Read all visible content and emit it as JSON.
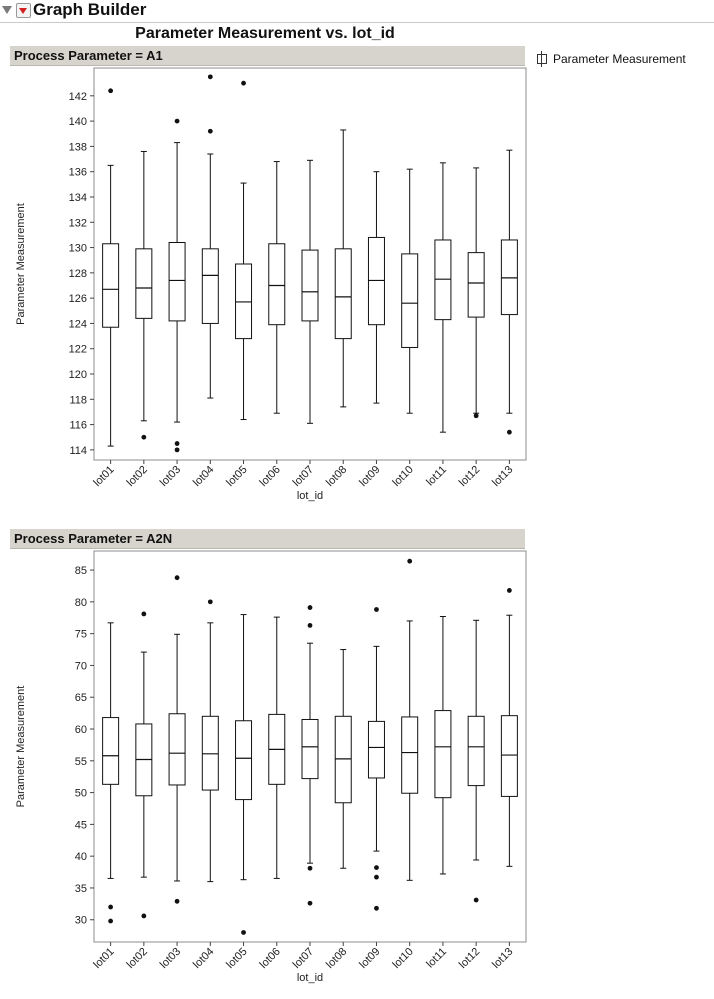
{
  "app": {
    "title": "Graph Builder"
  },
  "chart_title": "Parameter Measurement vs. lot_id",
  "legend": {
    "label": "Parameter Measurement"
  },
  "chart_data": [
    {
      "type": "box",
      "panel_label": "Process Parameter = A1",
      "xlabel": "lot_id",
      "ylabel": "Parameter Measurement",
      "categories": [
        "lot01",
        "lot02",
        "lot03",
        "lot04",
        "lot05",
        "lot06",
        "lot07",
        "lot08",
        "lot09",
        "lot10",
        "lot11",
        "lot12",
        "lot13"
      ],
      "ylim": [
        113.2,
        144.2
      ],
      "yticks": [
        114,
        116,
        118,
        120,
        122,
        124,
        126,
        128,
        130,
        132,
        134,
        136,
        138,
        140,
        142
      ],
      "boxes": [
        {
          "min": 114.3,
          "q1": 123.7,
          "median": 126.7,
          "q3": 130.3,
          "max": 136.5,
          "outliers": [
            142.4
          ]
        },
        {
          "min": 116.3,
          "q1": 124.4,
          "median": 126.8,
          "q3": 129.9,
          "max": 137.6,
          "outliers": [
            115.0
          ]
        },
        {
          "min": 116.2,
          "q1": 124.2,
          "median": 127.4,
          "q3": 130.4,
          "max": 138.3,
          "outliers": [
            140.0,
            114.5,
            114.0
          ]
        },
        {
          "min": 118.1,
          "q1": 124.0,
          "median": 127.8,
          "q3": 129.9,
          "max": 137.4,
          "outliers": [
            143.5,
            139.2
          ]
        },
        {
          "min": 116.4,
          "q1": 122.8,
          "median": 125.7,
          "q3": 128.7,
          "max": 135.1,
          "outliers": [
            143.0
          ]
        },
        {
          "min": 116.9,
          "q1": 123.9,
          "median": 127.0,
          "q3": 130.3,
          "max": 136.8,
          "outliers": []
        },
        {
          "min": 116.1,
          "q1": 124.2,
          "median": 126.5,
          "q3": 129.8,
          "max": 136.9,
          "outliers": []
        },
        {
          "min": 117.4,
          "q1": 122.8,
          "median": 126.1,
          "q3": 129.9,
          "max": 139.3,
          "outliers": []
        },
        {
          "min": 117.7,
          "q1": 123.9,
          "median": 127.4,
          "q3": 130.8,
          "max": 136.0,
          "outliers": []
        },
        {
          "min": 116.9,
          "q1": 122.1,
          "median": 125.6,
          "q3": 129.5,
          "max": 136.2,
          "outliers": []
        },
        {
          "min": 115.4,
          "q1": 124.3,
          "median": 127.5,
          "q3": 130.6,
          "max": 136.7,
          "outliers": []
        },
        {
          "min": 116.9,
          "q1": 124.5,
          "median": 127.2,
          "q3": 129.6,
          "max": 136.3,
          "outliers": [
            116.7
          ]
        },
        {
          "min": 116.9,
          "q1": 124.7,
          "median": 127.6,
          "q3": 130.6,
          "max": 137.7,
          "outliers": [
            115.4
          ]
        }
      ]
    },
    {
      "type": "box",
      "panel_label": "Process Parameter = A2N",
      "xlabel": "lot_id",
      "ylabel": "Parameter Measurement",
      "categories": [
        "lot01",
        "lot02",
        "lot03",
        "lot04",
        "lot05",
        "lot06",
        "lot07",
        "lot08",
        "lot09",
        "lot10",
        "lot11",
        "lot12",
        "lot13"
      ],
      "ylim": [
        26.5,
        88.0
      ],
      "yticks": [
        30,
        35,
        40,
        45,
        50,
        55,
        60,
        65,
        70,
        75,
        80,
        85
      ],
      "boxes": [
        {
          "min": 36.5,
          "q1": 51.3,
          "median": 55.8,
          "q3": 61.8,
          "max": 76.7,
          "outliers": [
            32.0,
            29.8
          ]
        },
        {
          "min": 36.7,
          "q1": 49.5,
          "median": 55.2,
          "q3": 60.8,
          "max": 72.1,
          "outliers": [
            78.1,
            30.6
          ]
        },
        {
          "min": 36.1,
          "q1": 51.2,
          "median": 56.2,
          "q3": 62.4,
          "max": 74.9,
          "outliers": [
            83.8,
            32.9
          ]
        },
        {
          "min": 36.0,
          "q1": 50.4,
          "median": 56.1,
          "q3": 62.0,
          "max": 76.7,
          "outliers": [
            80.0
          ]
        },
        {
          "min": 36.3,
          "q1": 48.9,
          "median": 55.4,
          "q3": 61.3,
          "max": 78.0,
          "outliers": [
            28.0
          ]
        },
        {
          "min": 36.5,
          "q1": 51.3,
          "median": 56.8,
          "q3": 62.3,
          "max": 77.6,
          "outliers": []
        },
        {
          "min": 38.9,
          "q1": 52.2,
          "median": 57.2,
          "q3": 61.5,
          "max": 73.5,
          "outliers": [
            79.1,
            76.3,
            38.1,
            32.6
          ]
        },
        {
          "min": 38.1,
          "q1": 48.4,
          "median": 55.3,
          "q3": 62.0,
          "max": 72.5,
          "outliers": []
        },
        {
          "min": 40.8,
          "q1": 52.3,
          "median": 57.1,
          "q3": 61.2,
          "max": 73.0,
          "outliers": [
            78.8,
            38.2,
            36.7,
            31.8
          ]
        },
        {
          "min": 36.2,
          "q1": 49.9,
          "median": 56.3,
          "q3": 61.9,
          "max": 77.0,
          "outliers": [
            86.4
          ]
        },
        {
          "min": 37.2,
          "q1": 49.2,
          "median": 57.2,
          "q3": 62.9,
          "max": 77.7,
          "outliers": []
        },
        {
          "min": 39.4,
          "q1": 51.1,
          "median": 57.2,
          "q3": 62.0,
          "max": 77.1,
          "outliers": [
            33.1
          ]
        },
        {
          "min": 38.4,
          "q1": 49.4,
          "median": 55.9,
          "q3": 62.1,
          "max": 77.9,
          "outliers": [
            81.8
          ]
        }
      ]
    }
  ]
}
